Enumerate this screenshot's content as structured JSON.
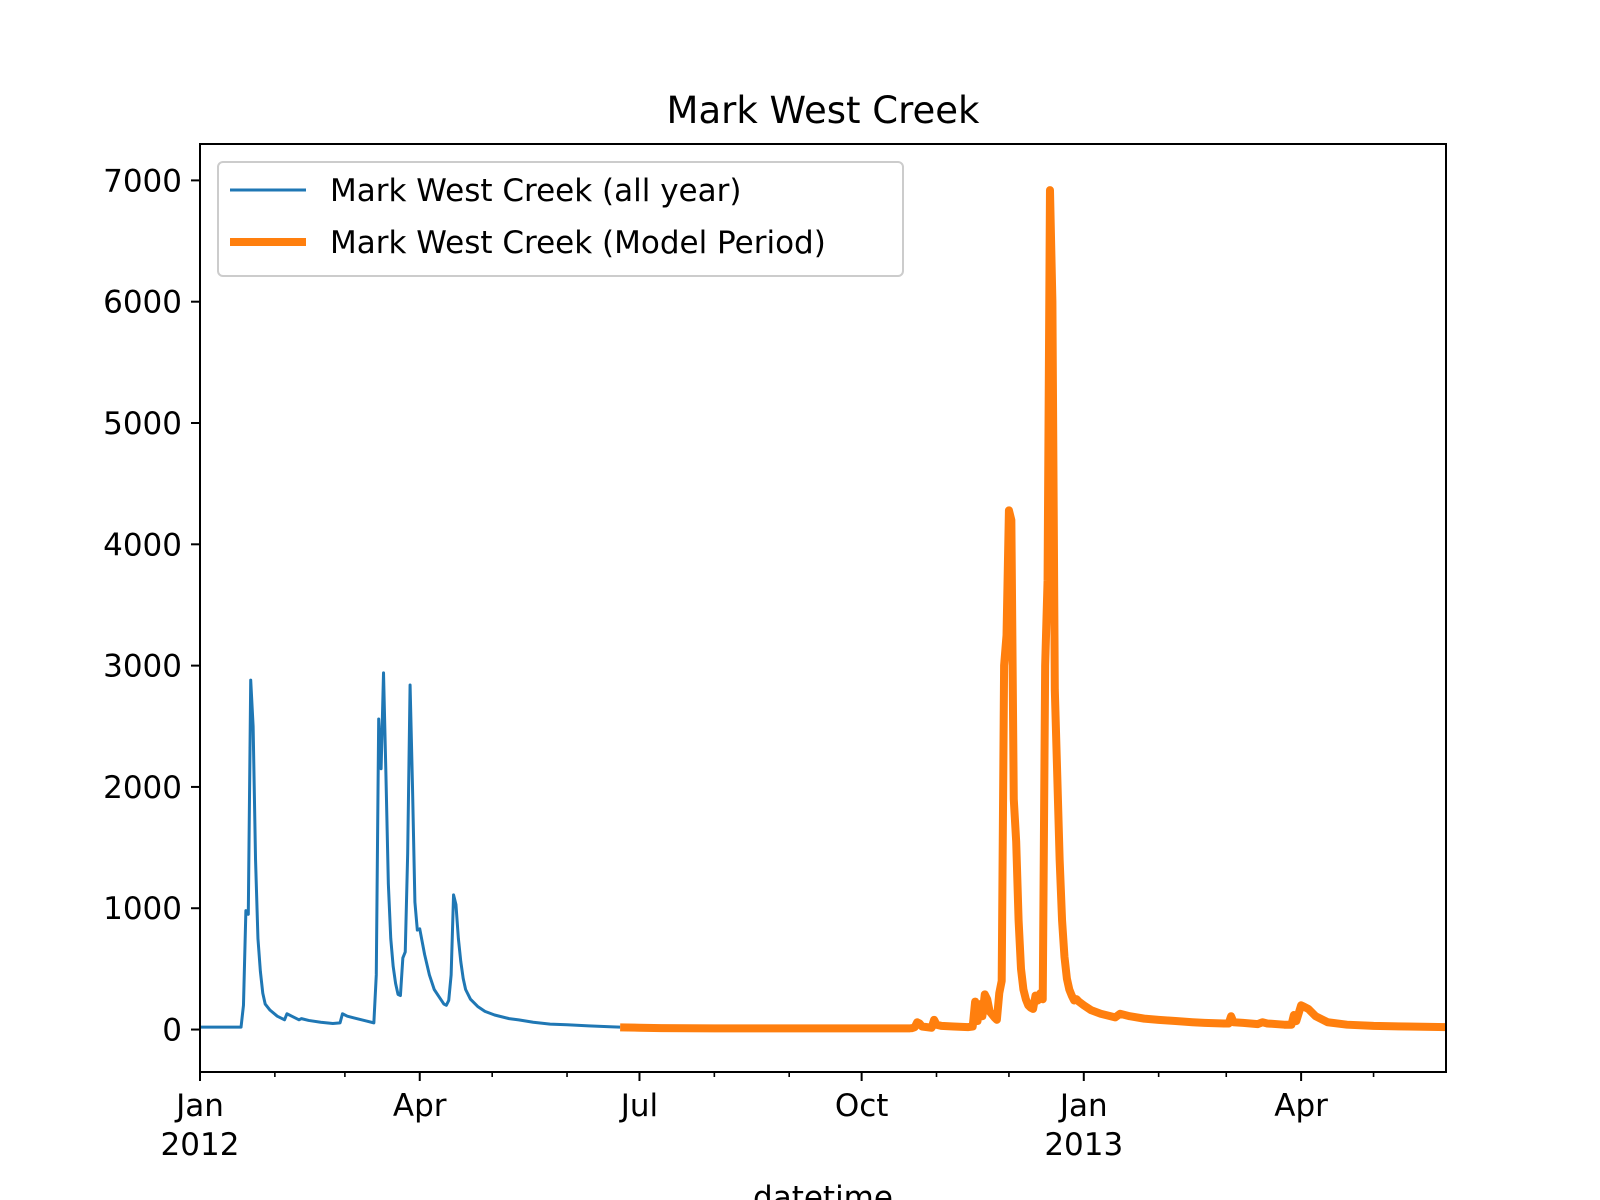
{
  "chart_data": {
    "type": "line",
    "title": "Mark West Creek",
    "xlabel": "datetime",
    "ylabel": "",
    "xlim": [
      "2012-01-01",
      "2013-05-31"
    ],
    "ylim": [
      -350,
      7300
    ],
    "grid": false,
    "legend_position": "top-left",
    "y_ticks": [
      0,
      1000,
      2000,
      3000,
      4000,
      5000,
      6000,
      7000
    ],
    "y_tick_labels": [
      "0",
      "1000",
      "2000",
      "3000",
      "4000",
      "5000",
      "6000",
      "7000"
    ],
    "x_major_ticks": [
      {
        "date": "2012-01-01",
        "label": "Jan",
        "sublabel": "2012"
      },
      {
        "date": "2012-04-01",
        "label": "Apr",
        "sublabel": ""
      },
      {
        "date": "2012-07-01",
        "label": "Jul",
        "sublabel": ""
      },
      {
        "date": "2012-10-01",
        "label": "Oct",
        "sublabel": ""
      },
      {
        "date": "2013-01-01",
        "label": "Jan",
        "sublabel": "2013"
      },
      {
        "date": "2013-04-01",
        "label": "Apr",
        "sublabel": ""
      }
    ],
    "x_minor_ticks": [
      "2012-02-01",
      "2012-03-01",
      "2012-05-01",
      "2012-06-01",
      "2012-08-01",
      "2012-09-01",
      "2012-11-01",
      "2012-12-01",
      "2013-02-01",
      "2013-03-01",
      "2013-05-01",
      "2013-06-01"
    ],
    "series": [
      {
        "name": "Mark West Creek (all year)",
        "color": "#1f77b4",
        "line_style": "thin",
        "points": [
          [
            "2012-01-01",
            20
          ],
          [
            "2012-01-18",
            20
          ],
          [
            "2012-01-19",
            200
          ],
          [
            "2012-01-20",
            980
          ],
          [
            "2012-01-21",
            950
          ],
          [
            "2012-01-22",
            2880
          ],
          [
            "2012-01-23",
            2500
          ],
          [
            "2012-01-24",
            1400
          ],
          [
            "2012-01-25",
            750
          ],
          [
            "2012-01-26",
            480
          ],
          [
            "2012-01-27",
            300
          ],
          [
            "2012-01-28",
            210
          ],
          [
            "2012-01-30",
            160
          ],
          [
            "2012-02-02",
            110
          ],
          [
            "2012-02-05",
            80
          ],
          [
            "2012-02-06",
            130
          ],
          [
            "2012-02-08",
            110
          ],
          [
            "2012-02-11",
            80
          ],
          [
            "2012-02-12",
            90
          ],
          [
            "2012-02-15",
            75
          ],
          [
            "2012-02-20",
            60
          ],
          [
            "2012-02-25",
            50
          ],
          [
            "2012-02-28",
            55
          ],
          [
            "2012-02-29",
            130
          ],
          [
            "2012-03-02",
            110
          ],
          [
            "2012-03-05",
            95
          ],
          [
            "2012-03-10",
            70
          ],
          [
            "2012-03-13",
            55
          ],
          [
            "2012-03-14",
            450
          ],
          [
            "2012-03-15",
            2560
          ],
          [
            "2012-03-16",
            2150
          ],
          [
            "2012-03-17",
            2940
          ],
          [
            "2012-03-18",
            2100
          ],
          [
            "2012-03-19",
            1200
          ],
          [
            "2012-03-20",
            750
          ],
          [
            "2012-03-21",
            520
          ],
          [
            "2012-03-22",
            380
          ],
          [
            "2012-03-23",
            290
          ],
          [
            "2012-03-24",
            280
          ],
          [
            "2012-03-25",
            590
          ],
          [
            "2012-03-26",
            640
          ],
          [
            "2012-03-27",
            1450
          ],
          [
            "2012-03-28",
            2840
          ],
          [
            "2012-03-29",
            2000
          ],
          [
            "2012-03-30",
            1050
          ],
          [
            "2012-03-31",
            820
          ],
          [
            "2012-04-01",
            830
          ],
          [
            "2012-04-03",
            620
          ],
          [
            "2012-04-05",
            450
          ],
          [
            "2012-04-07",
            330
          ],
          [
            "2012-04-09",
            270
          ],
          [
            "2012-04-11",
            210
          ],
          [
            "2012-04-12",
            200
          ],
          [
            "2012-04-13",
            240
          ],
          [
            "2012-04-14",
            450
          ],
          [
            "2012-04-15",
            1110
          ],
          [
            "2012-04-16",
            1030
          ],
          [
            "2012-04-17",
            750
          ],
          [
            "2012-04-18",
            560
          ],
          [
            "2012-04-19",
            420
          ],
          [
            "2012-04-20",
            330
          ],
          [
            "2012-04-22",
            250
          ],
          [
            "2012-04-25",
            190
          ],
          [
            "2012-04-28",
            150
          ],
          [
            "2012-05-02",
            120
          ],
          [
            "2012-05-08",
            90
          ],
          [
            "2012-05-12",
            80
          ],
          [
            "2012-05-18",
            60
          ],
          [
            "2012-05-25",
            45
          ],
          [
            "2012-06-01",
            40
          ],
          [
            "2012-06-10",
            30
          ],
          [
            "2012-06-20",
            22
          ],
          [
            "2012-06-23",
            20
          ]
        ]
      },
      {
        "name": "Mark West Creek (Model Period)",
        "color": "#ff7f0e",
        "line_style": "thick",
        "points": [
          [
            "2012-06-23",
            18
          ],
          [
            "2012-07-01",
            15
          ],
          [
            "2012-07-10",
            12
          ],
          [
            "2012-08-01",
            10
          ],
          [
            "2012-09-01",
            10
          ],
          [
            "2012-10-01",
            10
          ],
          [
            "2012-10-21",
            10
          ],
          [
            "2012-10-22",
            12
          ],
          [
            "2012-10-23",
            20
          ],
          [
            "2012-10-24",
            60
          ],
          [
            "2012-10-25",
            50
          ],
          [
            "2012-10-26",
            25
          ],
          [
            "2012-10-28",
            20
          ],
          [
            "2012-10-30",
            15
          ],
          [
            "2012-10-31",
            80
          ],
          [
            "2012-11-01",
            40
          ],
          [
            "2012-11-03",
            30
          ],
          [
            "2012-11-08",
            25
          ],
          [
            "2012-11-14",
            20
          ],
          [
            "2012-11-16",
            25
          ],
          [
            "2012-11-17",
            230
          ],
          [
            "2012-11-18",
            70
          ],
          [
            "2012-11-19",
            210
          ],
          [
            "2012-11-20",
            110
          ],
          [
            "2012-11-21",
            290
          ],
          [
            "2012-11-22",
            250
          ],
          [
            "2012-11-23",
            150
          ],
          [
            "2012-11-25",
            100
          ],
          [
            "2012-11-26",
            80
          ],
          [
            "2012-11-27",
            300
          ],
          [
            "2012-11-28",
            400
          ],
          [
            "2012-11-29",
            3000
          ],
          [
            "2012-11-30",
            3250
          ],
          [
            "2012-12-01",
            4280
          ],
          [
            "2012-12-02",
            4200
          ],
          [
            "2012-12-03",
            1900
          ],
          [
            "2012-12-04",
            1550
          ],
          [
            "2012-12-05",
            900
          ],
          [
            "2012-12-06",
            500
          ],
          [
            "2012-12-07",
            330
          ],
          [
            "2012-12-08",
            250
          ],
          [
            "2012-12-09",
            200
          ],
          [
            "2012-12-10",
            180
          ],
          [
            "2012-12-11",
            170
          ],
          [
            "2012-12-12",
            280
          ],
          [
            "2012-12-13",
            240
          ],
          [
            "2012-12-14",
            300
          ],
          [
            "2012-12-15",
            250
          ],
          [
            "2012-12-16",
            3000
          ],
          [
            "2012-12-17",
            3700
          ],
          [
            "2012-12-18",
            6920
          ],
          [
            "2012-12-19",
            6000
          ],
          [
            "2012-12-20",
            2800
          ],
          [
            "2012-12-21",
            2100
          ],
          [
            "2012-12-22",
            1400
          ],
          [
            "2012-12-23",
            900
          ],
          [
            "2012-12-24",
            600
          ],
          [
            "2012-12-25",
            420
          ],
          [
            "2012-12-26",
            330
          ],
          [
            "2012-12-27",
            280
          ],
          [
            "2012-12-28",
            240
          ],
          [
            "2012-12-29",
            250
          ],
          [
            "2012-12-30",
            230
          ],
          [
            "2013-01-01",
            200
          ],
          [
            "2013-01-04",
            160
          ],
          [
            "2013-01-08",
            130
          ],
          [
            "2013-01-14",
            100
          ],
          [
            "2013-01-16",
            130
          ],
          [
            "2013-01-20",
            110
          ],
          [
            "2013-01-26",
            90
          ],
          [
            "2013-02-01",
            80
          ],
          [
            "2013-02-08",
            70
          ],
          [
            "2013-02-15",
            60
          ],
          [
            "2013-02-20",
            55
          ],
          [
            "2013-02-28",
            50
          ],
          [
            "2013-03-02",
            50
          ],
          [
            "2013-03-03",
            110
          ],
          [
            "2013-03-04",
            60
          ],
          [
            "2013-03-08",
            55
          ],
          [
            "2013-03-14",
            45
          ],
          [
            "2013-03-16",
            60
          ],
          [
            "2013-03-18",
            50
          ],
          [
            "2013-03-25",
            40
          ],
          [
            "2013-03-28",
            40
          ],
          [
            "2013-03-29",
            120
          ],
          [
            "2013-03-30",
            70
          ],
          [
            "2013-04-01",
            200
          ],
          [
            "2013-04-02",
            190
          ],
          [
            "2013-04-04",
            170
          ],
          [
            "2013-04-07",
            110
          ],
          [
            "2013-04-12",
            60
          ],
          [
            "2013-04-20",
            40
          ],
          [
            "2013-05-01",
            30
          ],
          [
            "2013-05-15",
            25
          ],
          [
            "2013-05-31",
            20
          ]
        ]
      }
    ]
  }
}
